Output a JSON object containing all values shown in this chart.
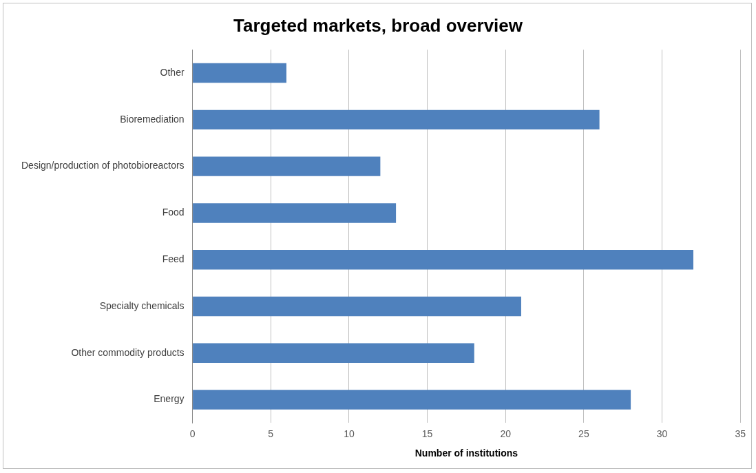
{
  "chart_data": {
    "type": "bar",
    "orientation": "horizontal",
    "title": "Targeted markets, broad overview",
    "xlabel": "Number of institutions",
    "categories": [
      "Other",
      "Bioremediation",
      "Design/production of photobioreactors",
      "Food",
      "Feed",
      "Specialty chemicals",
      "Other commodity products",
      "Energy"
    ],
    "values": [
      6,
      26,
      12,
      13,
      32,
      21,
      18,
      28
    ],
    "color": "#4f81bd",
    "xlim": [
      0,
      35
    ],
    "xticks": [
      0,
      5,
      10,
      15,
      20,
      25,
      30,
      35
    ],
    "grid": "x",
    "legend": false
  }
}
